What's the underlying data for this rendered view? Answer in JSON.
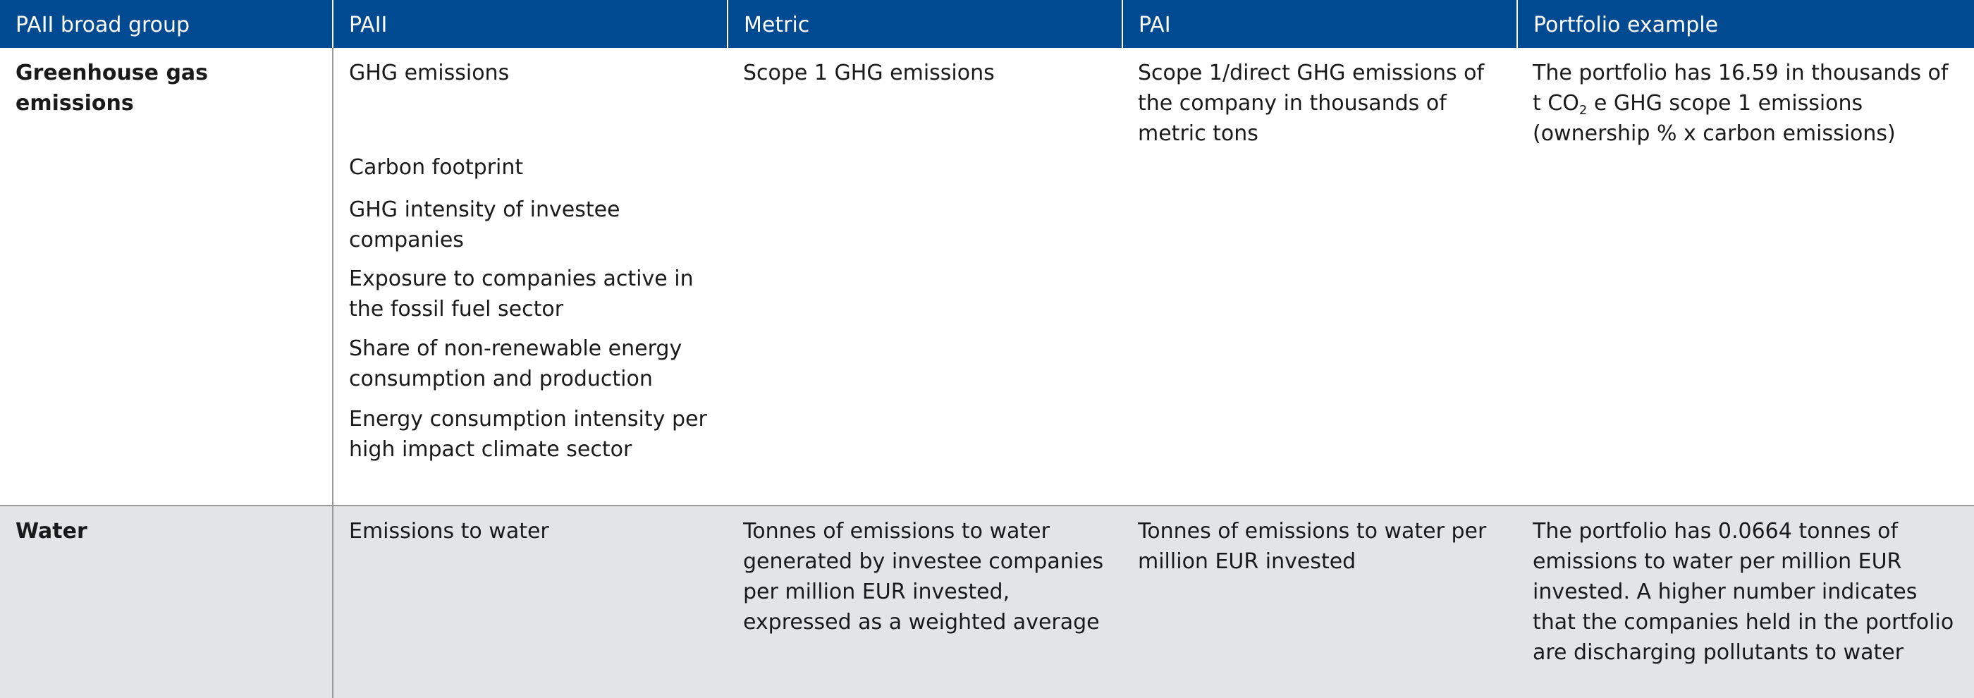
{
  "header": {
    "col1": "PAII broad group",
    "col2": "PAII",
    "col3": "Metric",
    "col4": "PAI",
    "col5": "Portfolio example"
  },
  "rows": [
    {
      "group": "Greenhouse gas emissions",
      "paii": [
        "GHG emissions",
        "Carbon footprint",
        "GHG intensity of investee companies",
        "Exposure to companies active in the fossil fuel sector",
        "Share of non-renewable energy consumption and production",
        "Energy consumption intensity per high impact climate sector"
      ],
      "metric": "Scope 1 GHG emissions",
      "pai": "Scope 1/direct GHG emissions of the company in thousands of metric tons",
      "example_part1": "The portfolio has 16.59 in thousands of t CO",
      "example_sub": "2",
      "example_part2": " e GHG scope 1 emissions (ownership %  x carbon emissions)"
    },
    {
      "group": "Water",
      "paii": [
        "Emissions to water"
      ],
      "metric": "Tonnes of emissions to water generated by investee companies per million EUR invested, expressed as a weighted average",
      "pai": "Tonnes of emissions to water per million EUR invested",
      "example": "The portfolio has 0.0664 tonnes of emissions to water per million EUR invested. A higher number indicates that the companies held in the portfolio are discharging pollutants to water"
    }
  ],
  "colors": {
    "header_bg": "#004a91",
    "header_text": "#ffffff",
    "water_row_bg": "#e3e4e6",
    "rule": "#9a9a9a"
  }
}
